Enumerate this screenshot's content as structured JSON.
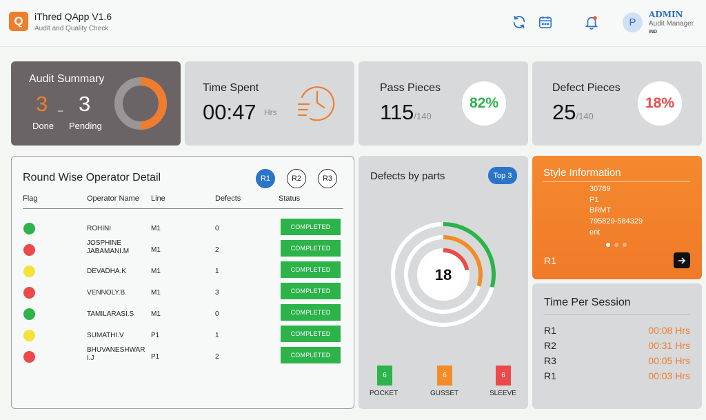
{
  "header": {
    "logo_letter": "Q",
    "app_title": "iThred QApp V1.6",
    "app_subtitle": "Audit and Quality Check",
    "refresh_icon": "refresh-icon",
    "calendar_icon": "calendar-icon",
    "bell_icon": "bell-icon",
    "avatar_letter": "P",
    "user_name": "ADMIN",
    "user_role": "Audit Manager",
    "user_country": "IND"
  },
  "audit_summary": {
    "title": "Audit Summary",
    "done_value": "3",
    "done_label": "Done",
    "separator": "_",
    "pending_value": "3",
    "pending_label": "Pending",
    "donut_done_fraction": 0.5
  },
  "time_spent": {
    "title": "Time Spent",
    "value": "00:47",
    "unit": "Hrs",
    "icon": "clock-icon"
  },
  "pass_pieces": {
    "title": "Pass Pieces",
    "value": "115",
    "total": "/140",
    "percent": "82%"
  },
  "defect_pieces": {
    "title": "Defect Pieces",
    "value": "25",
    "total": "/140",
    "percent": "18%"
  },
  "operator_detail": {
    "title": "Round Wise Operator Detail",
    "rounds": [
      "R1",
      "R2",
      "R3"
    ],
    "active_round": "R1",
    "columns": [
      "Flag",
      "Operator Name",
      "Line",
      "Defects",
      "Status"
    ],
    "rows": [
      {
        "flag": "green",
        "name": "ROHINI",
        "line": "M1",
        "defects": "0",
        "status": "COMPLETED"
      },
      {
        "flag": "red",
        "name": "JOSPHINE JABAMANI.M",
        "line": "M1",
        "defects": "2",
        "status": "COMPLETED"
      },
      {
        "flag": "yellow",
        "name": "DEVADHA.K",
        "line": "M1",
        "defects": "1",
        "status": "COMPLETED"
      },
      {
        "flag": "red",
        "name": "VENNOLY.B.",
        "line": "M1",
        "defects": "3",
        "status": "COMPLETED"
      },
      {
        "flag": "green",
        "name": "TAMILARASI.S",
        "line": "M1",
        "defects": "0",
        "status": "COMPLETED"
      },
      {
        "flag": "yellow",
        "name": "SUMATHI.V",
        "line": "P1",
        "defects": "1",
        "status": "COMPLETED"
      },
      {
        "flag": "red",
        "name": "BHUVANESHWAR I.J",
        "line": "P1",
        "defects": "2",
        "status": "COMPLETED"
      }
    ]
  },
  "defects_by_parts": {
    "title": "Defects by parts",
    "badge": "Top 3",
    "center_total": "18",
    "parts": [
      {
        "name": "POCKET",
        "count": "6",
        "color": "#2cb34a"
      },
      {
        "name": "GUSSET",
        "count": "6",
        "color": "#f28c28"
      },
      {
        "name": "SLEEVE",
        "count": "6",
        "color": "#ec4a4a"
      }
    ],
    "ring_fractions": [
      0.29,
      0.3,
      0.22
    ]
  },
  "style_info": {
    "title": "Style Information",
    "values": [
      "30789",
      "P1",
      "BRMT",
      "795829-584329",
      "ent"
    ],
    "round": "R1",
    "arrow_icon": "arrow-right-icon",
    "active_dot": 0
  },
  "time_per_session": {
    "title": "Time Per Session",
    "rows": [
      {
        "label": "R1",
        "value": "00:08 Hrs"
      },
      {
        "label": "R2",
        "value": "00:31 Hrs"
      },
      {
        "label": "R3",
        "value": "00:05 Hrs"
      },
      {
        "label": "R1",
        "value": "00:03 Hrs"
      }
    ]
  },
  "colors": {
    "accent_orange": "#ef7d2d",
    "pass_green": "#2cb34a",
    "defect_red": "#ec4a4a",
    "flag_yellow": "#f3e23a",
    "blue": "#2a74c9"
  }
}
